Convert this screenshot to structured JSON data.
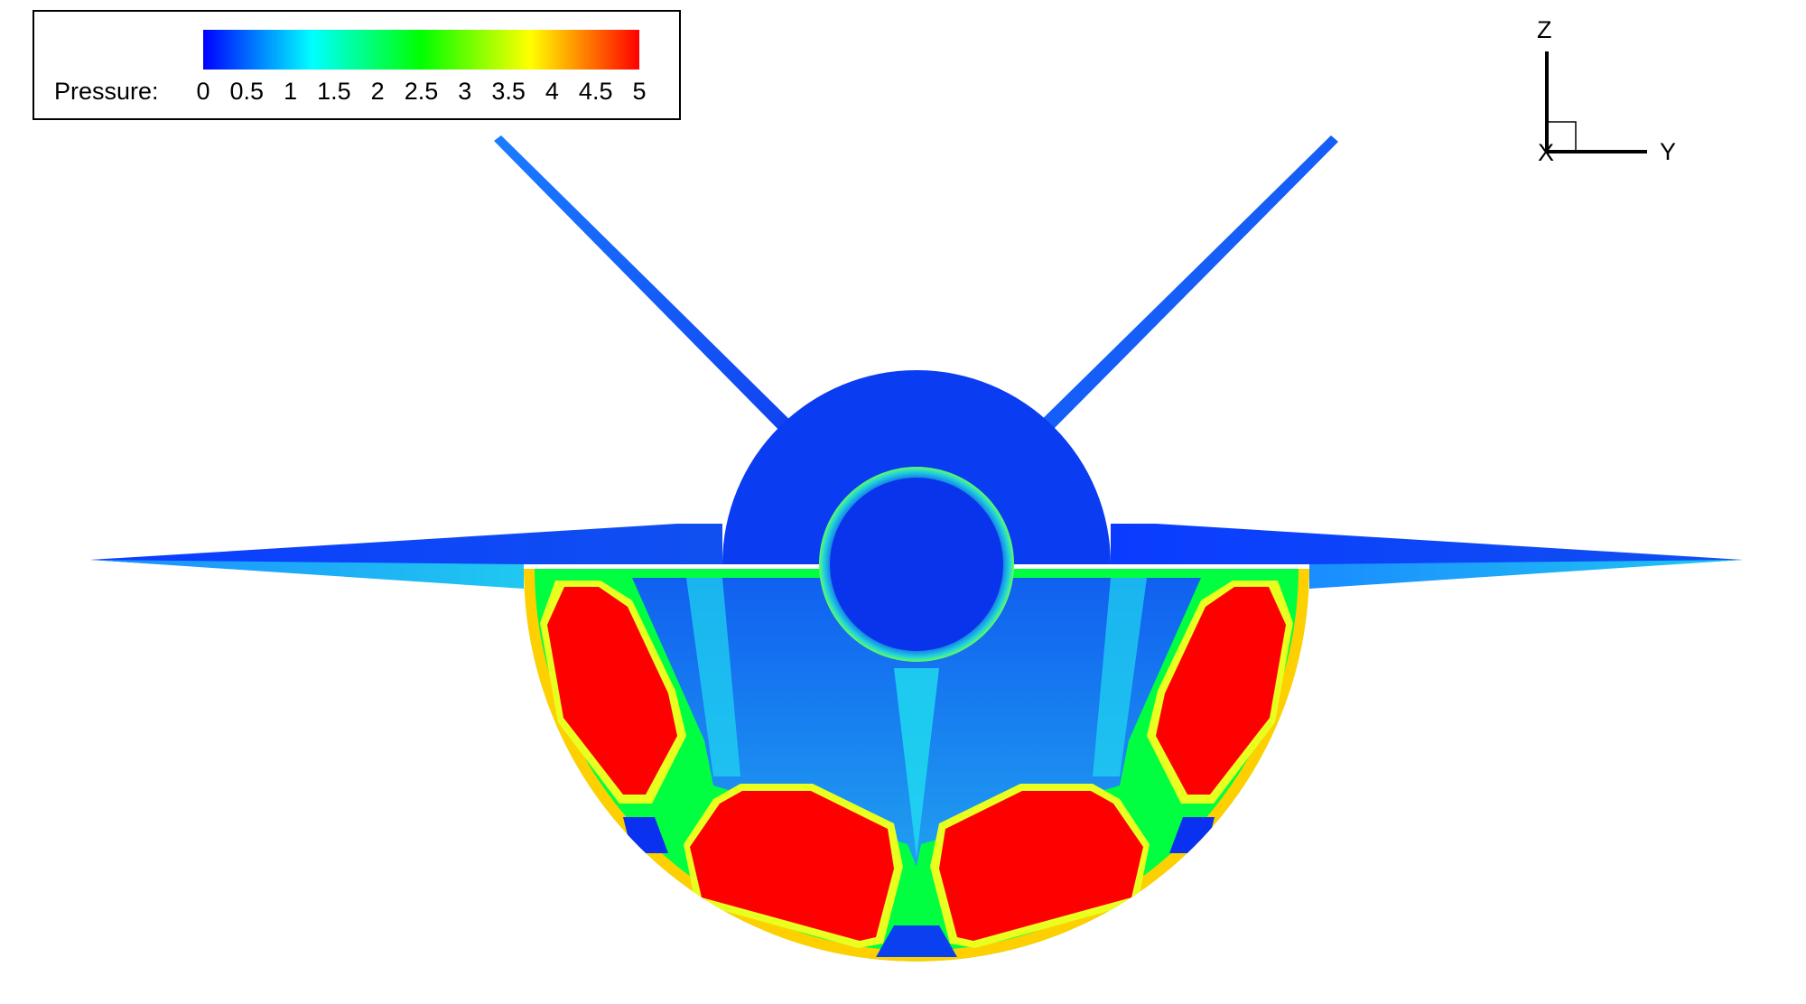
{
  "legend": {
    "label": "Pressure:",
    "ticks": [
      "0",
      "0.5",
      "1",
      "1.5",
      "2",
      "2.5",
      "3",
      "3.5",
      "4",
      "4.5",
      "5"
    ],
    "range": [
      0,
      5
    ],
    "colormap": [
      "#0000ff",
      "#0080ff",
      "#00ffff",
      "#00ff80",
      "#00ff00",
      "#80ff00",
      "#ffff00",
      "#ff8000",
      "#ff0000"
    ]
  },
  "axes_triad": {
    "z_label": "Z",
    "y_label": "Y",
    "x_label": "X"
  },
  "colors": {
    "low": "#0000ff",
    "low_mid": "#0a4cf0",
    "mid_low": "#1a9cf0",
    "cyan": "#00ffff",
    "green": "#00ff00",
    "yellow": "#ffff00",
    "high": "#ff0000"
  }
}
